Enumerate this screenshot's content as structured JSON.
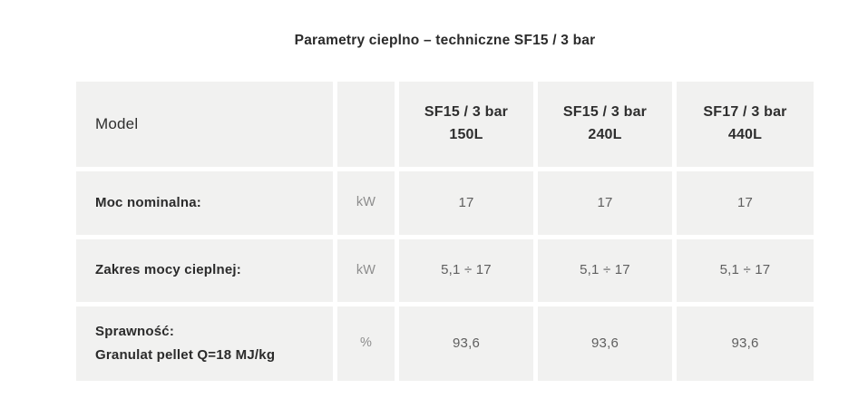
{
  "title": "Parametry cieplno – techniczne SF15 / 3 bar",
  "table": {
    "header": {
      "model_label": "Model",
      "unit_label": "",
      "columns": [
        {
          "name": "SF15 / 3 bar",
          "capacity": "150L"
        },
        {
          "name": "SF15 / 3 bar",
          "capacity": "240L"
        },
        {
          "name": "SF17 / 3 bar",
          "capacity": "440L"
        }
      ]
    },
    "rows": [
      {
        "label": "Moc nominalna:",
        "sublabel": "",
        "unit": "kW",
        "values": [
          "17",
          "17",
          "17"
        ]
      },
      {
        "label": "Zakres mocy cieplnej:",
        "sublabel": "",
        "unit": "kW",
        "values": [
          "5,1 ÷ 17",
          "5,1 ÷ 17",
          "5,1 ÷ 17"
        ]
      },
      {
        "label": "Sprawność:",
        "sublabel": "Granulat pellet Q=18 MJ/kg",
        "unit": "%",
        "values": [
          "93,6",
          "93,6",
          "93,6"
        ]
      }
    ]
  },
  "colors": {
    "page_background": "#ffffff",
    "cell_background": "#f1f1f0",
    "title_text": "#2b2b2b",
    "label_text": "#2b2b2b",
    "header_text": "#2e2e2e",
    "value_text": "#5f5f5f",
    "unit_text": "#8d8d8d"
  }
}
